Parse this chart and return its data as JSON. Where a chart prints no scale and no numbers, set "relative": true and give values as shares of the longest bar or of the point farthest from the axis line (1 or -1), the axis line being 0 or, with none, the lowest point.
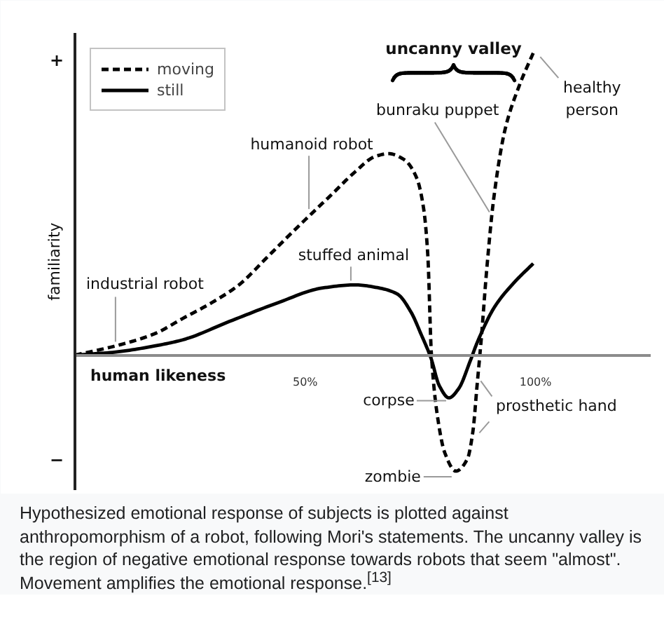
{
  "chart_data": {
    "type": "line",
    "relative": true,
    "xlabel": "human likeness",
    "ylabel": "familiarity",
    "xlim": [
      0,
      125
    ],
    "xticks": [
      {
        "value": 50,
        "label": "50%"
      },
      {
        "value": 100,
        "label": "100%"
      }
    ],
    "legend": "top left",
    "series": [
      {
        "name": "moving",
        "color": "#000000",
        "line_style": "dashed",
        "x": [
          0,
          8.8,
          17.3,
          23.4,
          29.5,
          35.6,
          41.7,
          47.7,
          56.0,
          60.8,
          65.1,
          68.1,
          71.5,
          74.2,
          75.7,
          76.6,
          77.4,
          78.8,
          80.3,
          82.7,
          85.2,
          86.4,
          87.3,
          88.2,
          89.4,
          90.9,
          93.4,
          96.4,
          99.8
        ],
        "values": [
          0,
          0.03,
          0.07,
          0.12,
          0.17,
          0.23,
          0.32,
          0.41,
          0.53,
          0.6,
          0.65,
          0.66,
          0.64,
          0.58,
          0.48,
          0.33,
          0,
          -0.21,
          -0.32,
          -0.38,
          -0.34,
          -0.25,
          -0.1,
          0.05,
          0.28,
          0.51,
          0.74,
          0.88,
          1.0
        ]
      },
      {
        "name": "still",
        "color": "#000000",
        "line_style": "solid",
        "x": [
          0,
          8.8,
          17.3,
          23.4,
          33.5,
          43.8,
          53.8,
          60.8,
          66.0,
          70.0,
          73.0,
          75.1,
          77.3,
          79.1,
          81.2,
          83.3,
          85.8,
          87.3,
          91.2,
          95.5,
          99.5
        ],
        "values": [
          0,
          0.01,
          0.03,
          0.05,
          0.11,
          0.17,
          0.22,
          0.23,
          0.22,
          0.2,
          0.14,
          0.07,
          -0.01,
          -0.1,
          -0.14,
          -0.11,
          -0.02,
          0.04,
          0.16,
          0.24,
          0.3
        ]
      }
    ],
    "annotations": [
      {
        "text": "uncanny valley",
        "x": 82.2,
        "y": 0.95
      },
      {
        "text": "industrial robot",
        "x": 8.8,
        "y": 0.03
      },
      {
        "text": "humanoid robot",
        "x": 50.8,
        "y": 0.46
      },
      {
        "text": "stuffed animal",
        "x": 59.9,
        "y": 0.23
      },
      {
        "text": "bunraku puppet",
        "x": 90.6,
        "y": 0.45
      },
      {
        "text": "healthy person",
        "x": 99.8,
        "y": 1.0
      },
      {
        "text": "corpse",
        "x": 81.2,
        "y": -0.14
      },
      {
        "text": "prosthetic hand",
        "x": 87.5,
        "y": -0.08
      },
      {
        "text": "zombie",
        "x": 82.7,
        "y": -0.38
      },
      "+",
      "−",
      "Hypothesized emotional response of subjects is plotted against anthropomorphism of a robot, following Mori's statements. The uncanny valley is the region of negative emotional response towards robots that seem \"almost\". Movement amplifies the emotional response.$^{[13]}$"
    ]
  }
}
